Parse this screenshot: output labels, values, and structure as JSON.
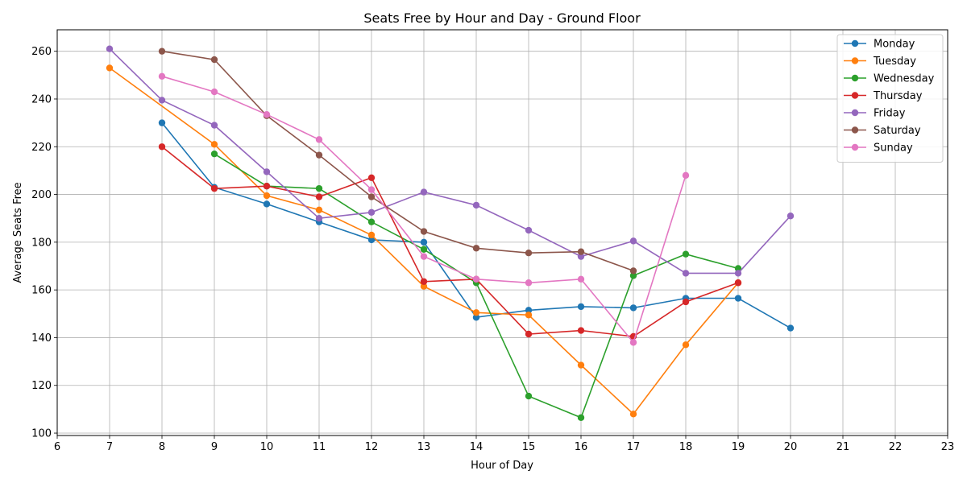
{
  "chart_data": {
    "type": "line",
    "title": "Seats Free by Hour and Day - Ground Floor",
    "xlabel": "Hour of Day",
    "ylabel": "Average Seats Free",
    "xlim": [
      6,
      23
    ],
    "ylim": [
      99,
      269
    ],
    "x_ticks": [
      6,
      7,
      8,
      9,
      10,
      11,
      12,
      13,
      14,
      15,
      16,
      17,
      18,
      19,
      20,
      21,
      22,
      23
    ],
    "y_ticks": [
      100,
      120,
      140,
      160,
      180,
      200,
      220,
      240,
      260
    ],
    "grid": true,
    "legend_position": "top-right",
    "series": [
      {
        "name": "Monday",
        "color": "#1f77b4",
        "points": [
          [
            8,
            230
          ],
          [
            9,
            203
          ],
          [
            10,
            196
          ],
          [
            11,
            188.5
          ],
          [
            12,
            181
          ],
          [
            13,
            180
          ],
          [
            14,
            148.5
          ],
          [
            15,
            151.5
          ],
          [
            16,
            153
          ],
          [
            17,
            152.5
          ],
          [
            18,
            156.5
          ],
          [
            19,
            156.5
          ],
          [
            20,
            144
          ]
        ]
      },
      {
        "name": "Tuesday",
        "color": "#ff7f0e",
        "points": [
          [
            7,
            253
          ],
          [
            9,
            221
          ],
          [
            10,
            199.5
          ],
          [
            11,
            193.5
          ],
          [
            12,
            183
          ],
          [
            13,
            161.5
          ],
          [
            14,
            150.5
          ],
          [
            15,
            149.5
          ],
          [
            16,
            128.5
          ],
          [
            17,
            108
          ],
          [
            18,
            137
          ],
          [
            19,
            163
          ]
        ]
      },
      {
        "name": "Wednesday",
        "color": "#2ca02c",
        "points": [
          [
            9,
            217
          ],
          [
            10,
            203.5
          ],
          [
            11,
            202.5
          ],
          [
            12,
            188.5
          ],
          [
            13,
            177
          ],
          [
            14,
            163
          ],
          [
            15,
            115.5
          ],
          [
            16,
            106.5
          ],
          [
            17,
            166
          ],
          [
            18,
            175
          ],
          [
            19,
            169
          ]
        ]
      },
      {
        "name": "Thursday",
        "color": "#d62728",
        "points": [
          [
            8,
            220
          ],
          [
            9,
            202.5
          ],
          [
            10,
            203.5
          ],
          [
            11,
            199
          ],
          [
            12,
            207
          ],
          [
            13,
            163.5
          ],
          [
            14,
            164.5
          ],
          [
            15,
            141.5
          ],
          [
            16,
            143
          ],
          [
            17,
            140.5
          ],
          [
            18,
            155
          ],
          [
            19,
            163
          ]
        ]
      },
      {
        "name": "Friday",
        "color": "#9467bd",
        "points": [
          [
            7,
            261
          ],
          [
            8,
            239.5
          ],
          [
            9,
            229
          ],
          [
            10,
            209.5
          ],
          [
            11,
            190
          ],
          [
            12,
            192.5
          ],
          [
            13,
            201
          ],
          [
            14,
            195.5
          ],
          [
            15,
            185
          ],
          [
            16,
            174
          ],
          [
            17,
            180.5
          ],
          [
            18,
            167
          ],
          [
            19,
            167
          ],
          [
            20,
            191
          ]
        ]
      },
      {
        "name": "Saturday",
        "color": "#8c564b",
        "points": [
          [
            8,
            260
          ],
          [
            9,
            256.5
          ],
          [
            10,
            233
          ],
          [
            11,
            216.5
          ],
          [
            12,
            199
          ],
          [
            13,
            184.5
          ],
          [
            14,
            177.5
          ],
          [
            15,
            175.5
          ],
          [
            16,
            176
          ],
          [
            17,
            168
          ]
        ]
      },
      {
        "name": "Sunday",
        "color": "#e377c2",
        "points": [
          [
            8,
            249.5
          ],
          [
            9,
            243
          ],
          [
            10,
            233.5
          ],
          [
            11,
            223
          ],
          [
            12,
            202
          ],
          [
            13,
            174
          ],
          [
            14,
            164.5
          ],
          [
            15,
            163
          ],
          [
            16,
            164.5
          ],
          [
            17,
            138
          ],
          [
            18,
            208
          ]
        ]
      }
    ]
  }
}
